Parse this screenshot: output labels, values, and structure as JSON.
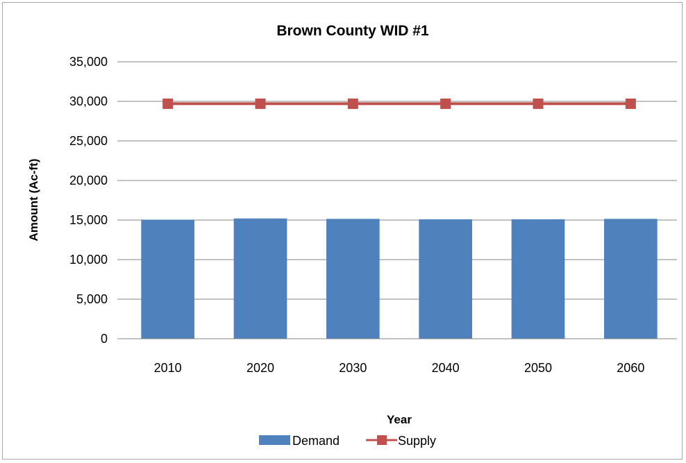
{
  "chart_data": {
    "type": "bar",
    "title": "Brown County WID #1",
    "xlabel": "Year",
    "ylabel": "Amount (Ac-ft)",
    "categories": [
      "2010",
      "2020",
      "2030",
      "2040",
      "2050",
      "2060"
    ],
    "ylim": [
      0,
      35000
    ],
    "yticks": [
      0,
      5000,
      10000,
      15000,
      20000,
      25000,
      30000,
      35000
    ],
    "ytick_labels": [
      "0",
      "5,000",
      "10,000",
      "15,000",
      "20,000",
      "25,000",
      "30,000",
      "35,000"
    ],
    "grid": true,
    "legend_position": "bottom",
    "series": [
      {
        "name": "Demand",
        "kind": "bar",
        "color": "#4f81bd",
        "values": [
          15050,
          15200,
          15150,
          15100,
          15100,
          15150
        ]
      },
      {
        "name": "Supply",
        "kind": "line",
        "marker": "square",
        "color": "#c0504d",
        "values": [
          29700,
          29700,
          29700,
          29700,
          29700,
          29700
        ]
      }
    ]
  }
}
